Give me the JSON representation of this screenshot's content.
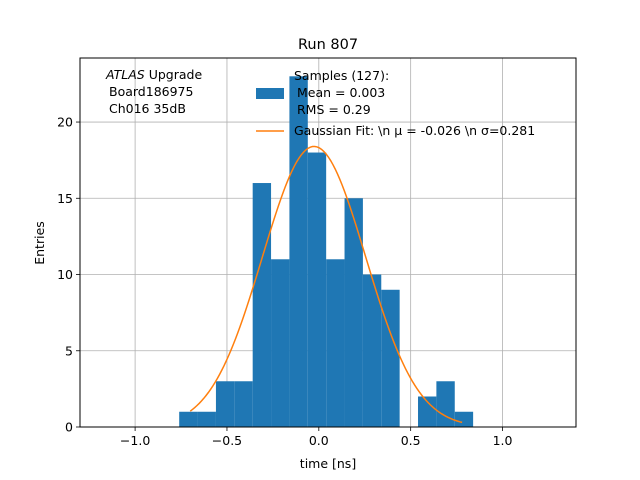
{
  "chart_data": {
    "type": "bar",
    "title": "Run 807",
    "xlabel": "time [ns]",
    "ylabel": "Entries",
    "xlim": [
      -1.3,
      1.4
    ],
    "ylim": [
      0,
      24.2
    ],
    "grid": true,
    "legend_position": "top-right",
    "xticks": [
      {
        "value": -1.0,
        "label": "−1.0"
      },
      {
        "value": -0.5,
        "label": "−0.5"
      },
      {
        "value": 0.0,
        "label": "0.0"
      },
      {
        "value": 0.5,
        "label": "0.5"
      },
      {
        "value": 1.0,
        "label": "1.0"
      }
    ],
    "yticks": [
      {
        "value": 0,
        "label": "0"
      },
      {
        "value": 5,
        "label": "5"
      },
      {
        "value": 10,
        "label": "10"
      },
      {
        "value": 15,
        "label": "15"
      },
      {
        "value": 20,
        "label": "20"
      }
    ],
    "bin_width": 0.1,
    "bin_edges": [
      -0.76,
      -0.66,
      -0.56,
      -0.46,
      -0.36,
      -0.26,
      -0.16,
      -0.06,
      0.04,
      0.14,
      0.24,
      0.34,
      0.44,
      0.54,
      0.64,
      0.74,
      0.84
    ],
    "values": [
      1,
      1,
      3,
      3,
      16,
      11,
      23,
      18,
      11,
      15,
      10,
      9,
      0,
      2,
      3,
      1
    ],
    "annotation_lines": [
      "ATLAS Upgrade",
      "Board186975",
      "Ch016 35dB"
    ],
    "annotation_italic_word": "ATLAS",
    "hist_legend_lines": [
      "Samples (127):",
      "Mean = 0.003",
      "RMS = 0.29"
    ],
    "fit_legend_label": "Gaussian Fit: \\n μ = -0.026 \\n σ=0.281",
    "fit": {
      "amplitude": 18.4,
      "mean": -0.026,
      "sigma": 0.281,
      "x_range": [
        -0.7,
        0.78
      ]
    },
    "colors": {
      "hist": "#1f77b4",
      "fit": "#ff7f0e",
      "grid": "#b0b0b0"
    }
  }
}
